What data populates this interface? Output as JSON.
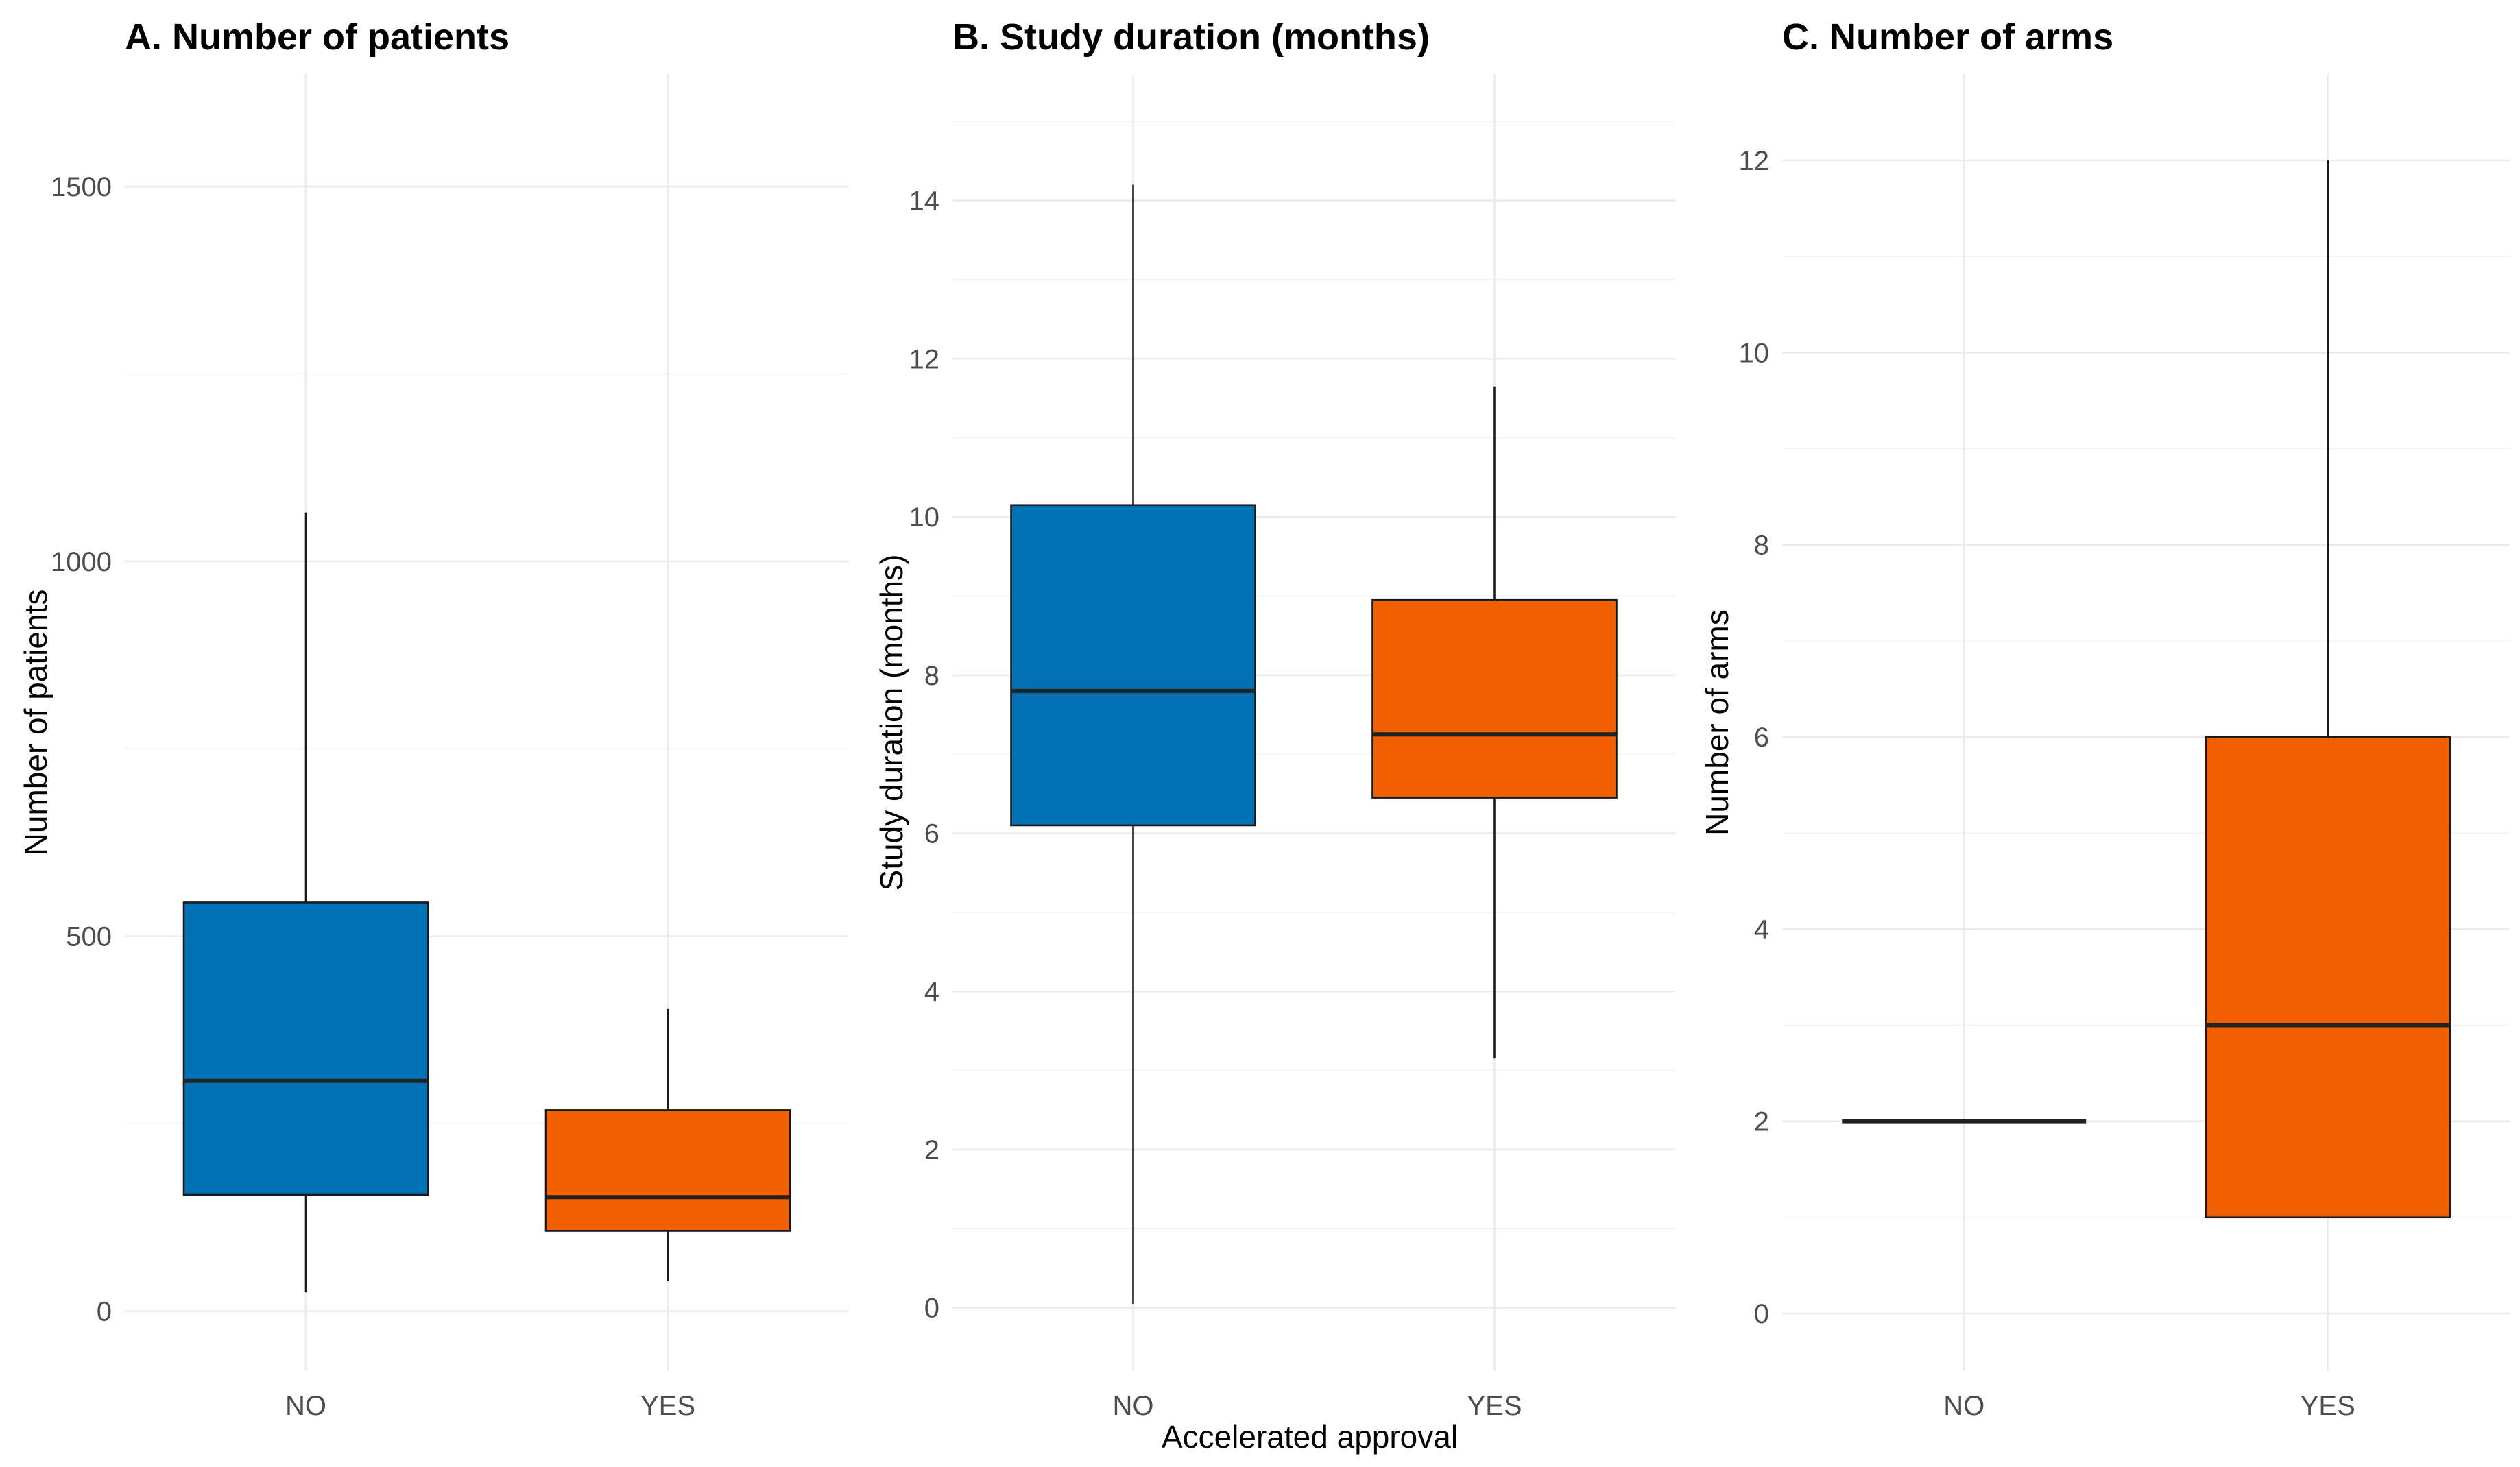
{
  "colors": {
    "NO": "#0072b5",
    "YES": "#f05f00"
  },
  "shared": {
    "xlabel": "Accelerated approval"
  },
  "chart_data": [
    {
      "type": "boxplot",
      "title": "A. Number of patients",
      "ylabel": "Number of patients",
      "ylim": [
        -80,
        1650
      ],
      "yticks": [
        0,
        500,
        1000,
        1500
      ],
      "ytick_labels": [
        "0",
        "500",
        "1000",
        "1500"
      ],
      "categories": [
        "NO",
        "YES"
      ],
      "boxes": [
        {
          "category": "NO",
          "min": 25,
          "q1": 155,
          "median": 307,
          "q3": 545,
          "max": 1065
        },
        {
          "category": "YES",
          "min": 40,
          "q1": 107,
          "median": 152,
          "q3": 268,
          "max": 403
        }
      ]
    },
    {
      "type": "boxplot",
      "title": "B. Study duration (months)",
      "ylabel": "Study duration (months)",
      "ylim": [
        -0.8,
        15.6
      ],
      "yticks": [
        0,
        2,
        4,
        6,
        8,
        10,
        12,
        14
      ],
      "ytick_labels": [
        "0",
        "2",
        "4",
        "6",
        "8",
        "10",
        "12",
        "14"
      ],
      "categories": [
        "NO",
        "YES"
      ],
      "boxes": [
        {
          "category": "NO",
          "min": 0.05,
          "q1": 6.1,
          "median": 7.8,
          "q3": 10.15,
          "max": 14.2
        },
        {
          "category": "YES",
          "min": 3.15,
          "q1": 6.45,
          "median": 7.25,
          "q3": 8.95,
          "max": 11.65
        }
      ]
    },
    {
      "type": "boxplot",
      "title": "C. Number of arms",
      "ylabel": "Number of arms",
      "ylim": [
        -0.6,
        12.9
      ],
      "yticks": [
        0,
        2,
        4,
        6,
        8,
        10,
        12
      ],
      "ytick_labels": [
        "0",
        "2",
        "4",
        "6",
        "8",
        "10",
        "12"
      ],
      "categories": [
        "NO",
        "YES"
      ],
      "boxes": [
        {
          "category": "NO",
          "min": 2,
          "q1": 2,
          "median": 2,
          "q3": 2,
          "max": 2
        },
        {
          "category": "YES",
          "min": 1,
          "q1": 1,
          "median": 3,
          "q3": 6,
          "max": 12
        }
      ]
    }
  ]
}
